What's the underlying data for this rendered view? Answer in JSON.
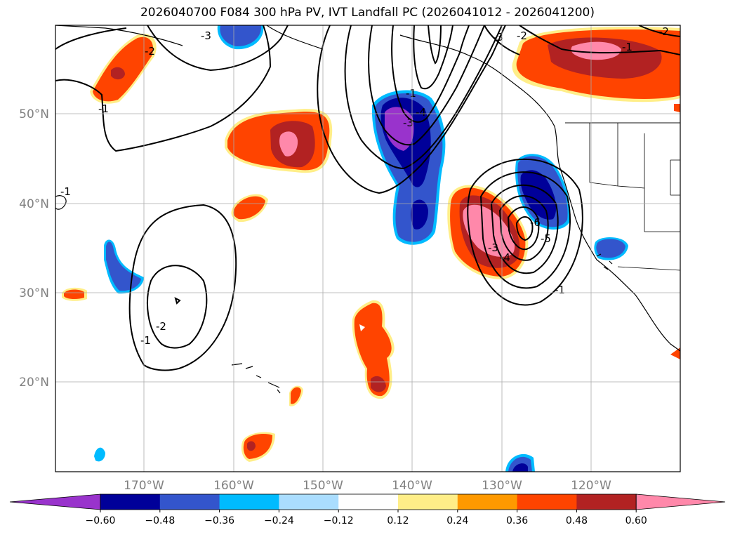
{
  "title": "2026040700 F084 300 hPa PV, IVT Landfall PC (2026041012 - 2026041200)",
  "map": {
    "lat_labels": [
      "50°N",
      "40°N",
      "30°N",
      "20°N"
    ],
    "lon_labels": [
      "170°W",
      "160°W",
      "150°W",
      "140°W",
      "130°W",
      "120°W"
    ],
    "contour_labels": [
      "-3",
      "-2",
      "-1",
      "-1",
      "-2",
      "-3",
      "-4",
      "-3",
      "-2",
      "-1",
      "-1",
      "-2",
      "-1",
      "-4",
      "-5",
      "-6",
      "-3",
      "-1"
    ]
  },
  "colorbar": {
    "colors": [
      "#9933cc",
      "#000099",
      "#3355cc",
      "#00bbff",
      "#aaddff",
      "#ffffff",
      "#ffee88",
      "#ff9900",
      "#ff4400",
      "#b22222",
      "#ff88aa"
    ],
    "tick_labels": [
      "−0.60",
      "−0.48",
      "−0.36",
      "−0.24",
      "−0.12",
      "0.12",
      "0.24",
      "0.36",
      "0.48",
      "0.60"
    ]
  }
}
